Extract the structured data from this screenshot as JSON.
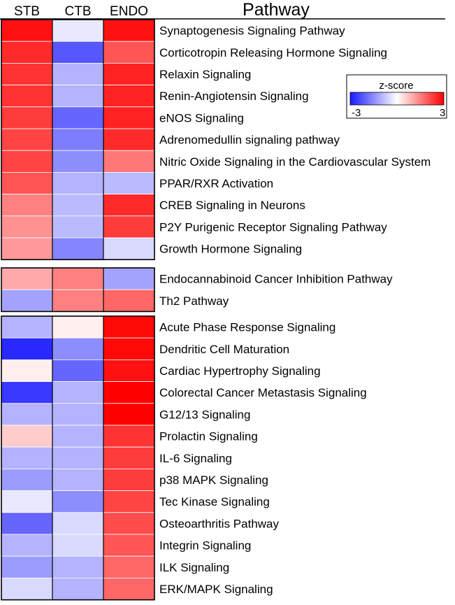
{
  "chart_data": {
    "type": "heatmap",
    "columns": [
      "STB",
      "CTB",
      "ENDO"
    ],
    "pathway_header": "Pathway",
    "value_scale": {
      "min": -3,
      "max": 3,
      "low_color": "#1a1aff",
      "mid_color": "#ffffff",
      "high_color": "#ff0000"
    },
    "groups": [
      {
        "rows": [
          {
            "pathway": "Synaptogenesis Signaling Pathway",
            "values": [
              2.8,
              -0.3,
              2.8
            ]
          },
          {
            "pathway": "Corticotropin Releasing Hormone Signaling",
            "values": [
              2.5,
              -2.2,
              2.0
            ]
          },
          {
            "pathway": "Relaxin Signaling",
            "values": [
              2.4,
              -1.0,
              2.6
            ]
          },
          {
            "pathway": "Renin-Angiotensin Signaling",
            "values": [
              2.4,
              -1.0,
              2.6
            ]
          },
          {
            "pathway": "eNOS Signaling",
            "values": [
              2.3,
              -2.0,
              2.6
            ]
          },
          {
            "pathway": "Adrenomedullin signaling pathway",
            "values": [
              2.2,
              -1.7,
              2.5
            ]
          },
          {
            "pathway": "Nitric Oxide Signaling in the Cardiovascular System",
            "values": [
              2.2,
              -1.5,
              1.6
            ]
          },
          {
            "pathway": "PPAR/RXR Activation",
            "values": [
              2.0,
              -1.0,
              -0.9
            ]
          },
          {
            "pathway": "CREB Signaling in Neurons",
            "values": [
              1.5,
              -0.9,
              2.5
            ]
          },
          {
            "pathway": "P2Y Purigenic Receptor Signaling Pathway",
            "values": [
              1.3,
              -0.9,
              2.3
            ]
          },
          {
            "pathway": "Growth Hormone Signaling",
            "values": [
              1.2,
              -1.6,
              -0.5
            ]
          }
        ]
      },
      {
        "rows": [
          {
            "pathway": "Endocannabinoid Cancer Inhibition Pathway",
            "values": [
              1.0,
              1.5,
              -1.2
            ]
          },
          {
            "pathway": "Th2 Pathway",
            "values": [
              -1.2,
              1.5,
              1.8
            ]
          }
        ]
      },
      {
        "rows": [
          {
            "pathway": "Acute Phase Response Signaling",
            "values": [
              -1.0,
              0.2,
              2.9
            ]
          },
          {
            "pathway": "Dendritic Cell Maturation",
            "values": [
              -2.8,
              -1.5,
              2.9
            ]
          },
          {
            "pathway": "Cardiac Hypertrophy Signaling",
            "values": [
              0.2,
              -2.0,
              2.8
            ]
          },
          {
            "pathway": "Colorectal Cancer Metastasis Signaling",
            "values": [
              -2.6,
              -1.0,
              3.0
            ]
          },
          {
            "pathway": "G12/13 Signaling",
            "values": [
              -1.0,
              -1.0,
              3.0
            ]
          },
          {
            "pathway": "Prolactin Signaling",
            "values": [
              0.6,
              -1.0,
              2.4
            ]
          },
          {
            "pathway": "IL-6 Signaling",
            "values": [
              -1.0,
              -1.0,
              2.3
            ]
          },
          {
            "pathway": "p38 MAPK Signaling",
            "values": [
              -1.3,
              -1.0,
              2.3
            ]
          },
          {
            "pathway": "Tec Kinase Signaling",
            "values": [
              -0.3,
              -1.5,
              2.2
            ]
          },
          {
            "pathway": "Osteoarthritis Pathway",
            "values": [
              -2.0,
              -0.5,
              2.1
            ]
          },
          {
            "pathway": "Integrin Signaling",
            "values": [
              -1.0,
              -0.5,
              2.0
            ]
          },
          {
            "pathway": "ILK Signaling",
            "values": [
              -1.3,
              -1.0,
              1.8
            ]
          },
          {
            "pathway": "ERK/MAPK Signaling",
            "values": [
              -0.5,
              -1.0,
              1.8
            ]
          }
        ]
      }
    ],
    "legend": {
      "title": "z-score",
      "min_label": "-3",
      "max_label": "3"
    }
  }
}
